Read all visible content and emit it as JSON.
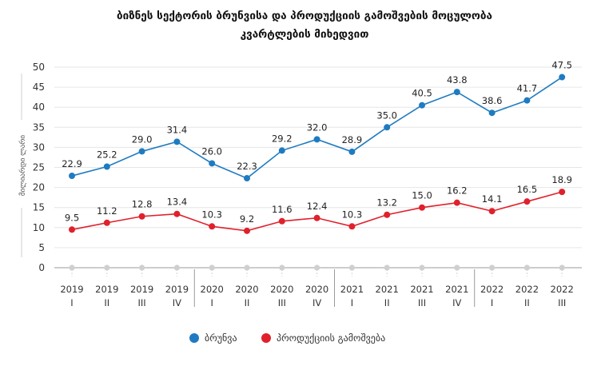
{
  "chart_data": {
    "type": "line",
    "title_line1": "ბიზნეს სექტორის ბრუნვისა და პროდუქციის გამოშვების მოცულობა",
    "title_line2": "კვარტლების მიხედვით",
    "ylabel": "მილიარდი ლარი",
    "ylim": [
      0,
      50
    ],
    "yticks": [
      0,
      5,
      10,
      15,
      20,
      25,
      30,
      35,
      40,
      45,
      50
    ],
    "grid": true,
    "legend_position": "bottom",
    "categories": [
      {
        "year": "2019",
        "q": "I"
      },
      {
        "year": "2019",
        "q": "II"
      },
      {
        "year": "2019",
        "q": "III"
      },
      {
        "year": "2019",
        "q": "IV"
      },
      {
        "year": "2020",
        "q": "I"
      },
      {
        "year": "2020",
        "q": "II"
      },
      {
        "year": "2020",
        "q": "III"
      },
      {
        "year": "2020",
        "q": "IV"
      },
      {
        "year": "2021",
        "q": "I"
      },
      {
        "year": "2021",
        "q": "II"
      },
      {
        "year": "2021",
        "q": "III"
      },
      {
        "year": "2021",
        "q": "IV"
      },
      {
        "year": "2022",
        "q": "I"
      },
      {
        "year": "2022",
        "q": "II"
      },
      {
        "year": "2022",
        "q": "III"
      }
    ],
    "series": [
      {
        "name": "ბრუნვა",
        "color": "#1f7bc1",
        "values": [
          22.9,
          25.2,
          29.0,
          31.4,
          26.0,
          22.3,
          29.2,
          32.0,
          28.9,
          35.0,
          40.5,
          43.8,
          38.6,
          41.7,
          47.5
        ]
      },
      {
        "name": "პროდუქციის გამოშვება",
        "color": "#e0212b",
        "values": [
          9.5,
          11.2,
          12.8,
          13.4,
          10.3,
          9.2,
          11.6,
          12.4,
          10.3,
          13.2,
          15.0,
          16.2,
          14.1,
          16.5,
          18.9
        ]
      }
    ]
  }
}
